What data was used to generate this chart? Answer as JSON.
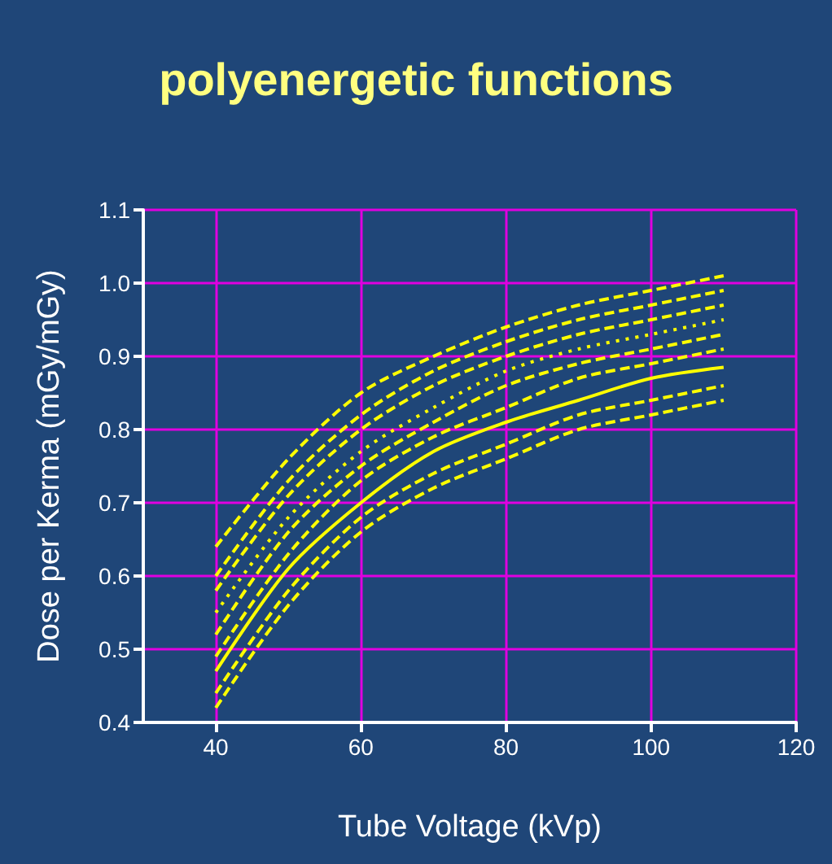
{
  "chart_data": {
    "type": "line",
    "title": "polyenergetic functions",
    "xlabel": "Tube Voltage (kVp)",
    "ylabel": "Dose per Kerma (mGy/mGy)",
    "x": [
      40,
      50,
      60,
      70,
      80,
      90,
      100,
      110
    ],
    "xlim": [
      30,
      120
    ],
    "xticks": [
      40,
      60,
      80,
      100,
      120
    ],
    "ylim": [
      0.4,
      1.1
    ],
    "yticks": [
      0.4,
      0.5,
      0.6,
      0.7,
      0.8,
      0.9,
      {
        "value": 1,
        "label": "1.0"
      },
      1.1
    ],
    "grid": true,
    "marker": "none",
    "series": [
      {
        "color": "#ffff00",
        "line_style": "dashed",
        "values": [
          0.64,
          0.76,
          0.85,
          0.9,
          0.94,
          0.97,
          0.99,
          1.01
        ]
      },
      {
        "color": "#ffff00",
        "line_style": "dashed",
        "values": [
          0.6,
          0.73,
          0.82,
          0.88,
          0.92,
          0.95,
          0.97,
          0.99
        ]
      },
      {
        "color": "#ffff00",
        "line_style": "dashed",
        "values": [
          0.58,
          0.71,
          0.8,
          0.86,
          0.9,
          0.93,
          0.95,
          0.97
        ]
      },
      {
        "color": "#ffff00",
        "line_style": "dotted",
        "values": [
          0.55,
          0.68,
          0.77,
          0.83,
          0.88,
          0.91,
          0.93,
          0.95
        ]
      },
      {
        "color": "#ffff00",
        "line_style": "dashed",
        "values": [
          0.52,
          0.66,
          0.75,
          0.81,
          0.86,
          0.89,
          0.91,
          0.93
        ]
      },
      {
        "color": "#ffff00",
        "line_style": "dashed",
        "values": [
          0.49,
          0.63,
          0.73,
          0.79,
          0.83,
          0.87,
          0.89,
          0.91
        ]
      },
      {
        "color": "#ffff00",
        "line_style": "solid",
        "values": [
          0.47,
          0.61,
          0.7,
          0.77,
          0.81,
          0.84,
          0.87,
          0.885
        ]
      },
      {
        "color": "#ffff00",
        "line_style": "dashed",
        "values": [
          0.44,
          0.58,
          0.68,
          0.74,
          0.78,
          0.82,
          0.84,
          0.86
        ]
      },
      {
        "color": "#ffff00",
        "line_style": "dashed",
        "values": [
          0.42,
          0.56,
          0.66,
          0.72,
          0.76,
          0.8,
          0.82,
          0.84
        ]
      }
    ]
  }
}
